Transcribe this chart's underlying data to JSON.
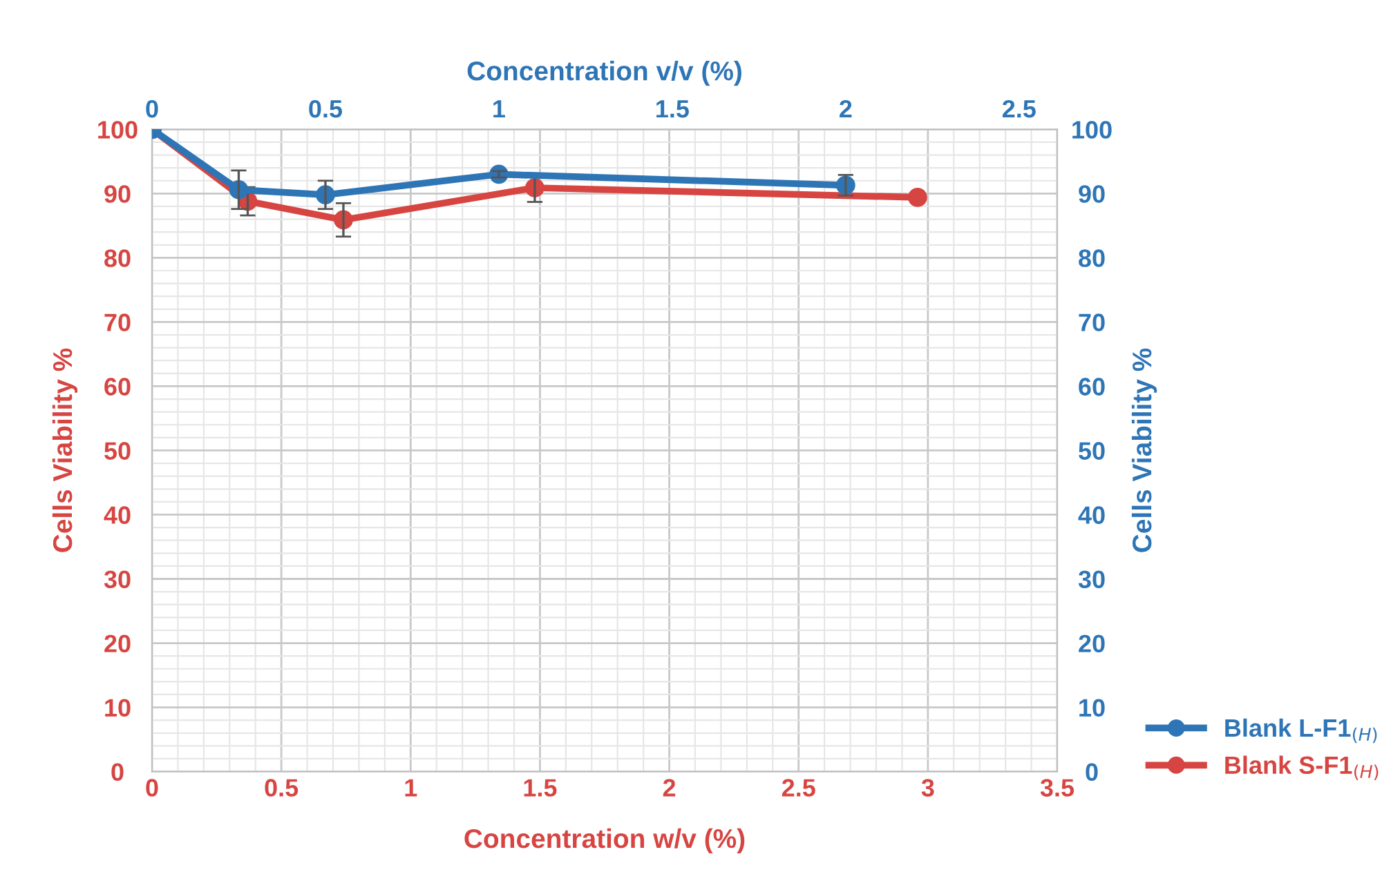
{
  "chart_data": {
    "type": "line",
    "xlabel": "Concentration w/v (%)",
    "x2label": "Concentration v/v (%)",
    "ylabel": "Cells Viability %",
    "y2label": "Cells Viability %",
    "xlim": [
      0,
      3.5
    ],
    "xticks": [
      0,
      0.5,
      1,
      1.5,
      2,
      2.5,
      3,
      3.5
    ],
    "x2lim": [
      0,
      2.61
    ],
    "x2ticks": [
      0,
      0.5,
      1,
      1.5,
      2,
      2.5
    ],
    "ylim": [
      0,
      100
    ],
    "yticks": [
      0,
      10,
      20,
      30,
      40,
      50,
      60,
      70,
      80,
      90,
      100
    ],
    "y2lim": [
      0,
      100
    ],
    "y2ticks": [
      0,
      10,
      20,
      30,
      40,
      50,
      60,
      70,
      80,
      90,
      100
    ],
    "grid": true,
    "legend": "bottom right",
    "marker": "circle",
    "line_style": "solid",
    "series": [
      {
        "name": "Blank L-F1$_{(H)}$",
        "color": "#2e75b6",
        "axis": "x2",
        "x": [
          0,
          0.25,
          0.5,
          1,
          2
        ],
        "values": [
          100,
          90.6,
          89.8,
          93.0,
          91.3
        ],
        "errors": [
          null,
          3,
          2.2,
          0.5,
          1.6
        ]
      },
      {
        "name": "Blank S-F1$_{(H)}$",
        "color": "#d64541",
        "x": [
          0,
          0.37,
          0.74,
          1.48,
          2.96
        ],
        "values": [
          100,
          88.8,
          85.9,
          90.9,
          89.4
        ],
        "errors": [
          null,
          2.2,
          2.6,
          2.2,
          null
        ]
      }
    ]
  }
}
